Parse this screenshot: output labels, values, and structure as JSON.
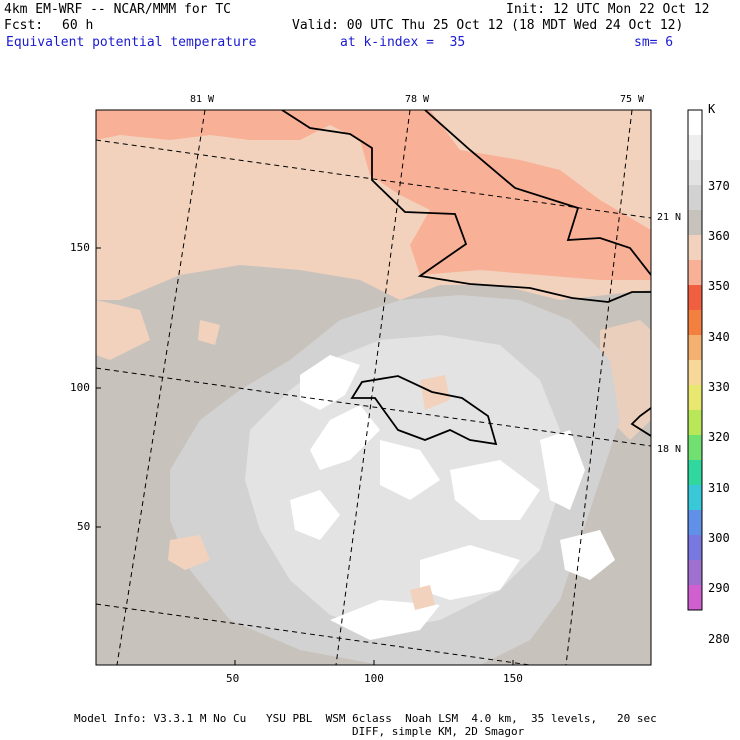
{
  "header": {
    "model": "4km EM-WRF -- NCAR/MMM for TC",
    "init": "Init: 12 UTC Mon 22 Oct 12",
    "fcst_label": "Fcst:",
    "fcst_value": "60 h",
    "valid": "Valid: 00 UTC Thu 25 Oct 12 (18 MDT Wed 24 Oct 12)",
    "field": "Equivalent potential temperature",
    "level": "at k-index =  35",
    "smoothing": "sm= 6"
  },
  "axes": {
    "x_ticks": [
      "50",
      "100",
      "150"
    ],
    "y_ticks": [
      "150",
      "100",
      "50"
    ]
  },
  "grid_labels": {
    "longitudes": [
      "81 W",
      "78 W",
      "75 W"
    ],
    "latitudes": [
      "21 N",
      "18 N"
    ]
  },
  "colorbar": {
    "unit": "K",
    "labels": [
      "370",
      "360",
      "350",
      "340",
      "330",
      "320",
      "310",
      "300",
      "290",
      "280"
    ],
    "colors": [
      "#ffffff",
      "#eeeeee",
      "#e3e3e3",
      "#d2d2d2",
      "#c8c2bc",
      "#f2d2bc",
      "#f8b096",
      "#f06040",
      "#f48040",
      "#f4b070",
      "#f8d898",
      "#e8e870",
      "#b8e858",
      "#70e070",
      "#30d8a0",
      "#38c8d8",
      "#6090e8",
      "#7878e0",
      "#a070d0",
      "#d060d0"
    ]
  },
  "footer": {
    "line1": "Model Info: V3.3.1 M No Cu   YSU PBL  WSM 6class  Noah LSM  4.0 km,  35 levels,   20 sec",
    "line2": "DIFF, simple KM, 2D Smagor"
  }
}
